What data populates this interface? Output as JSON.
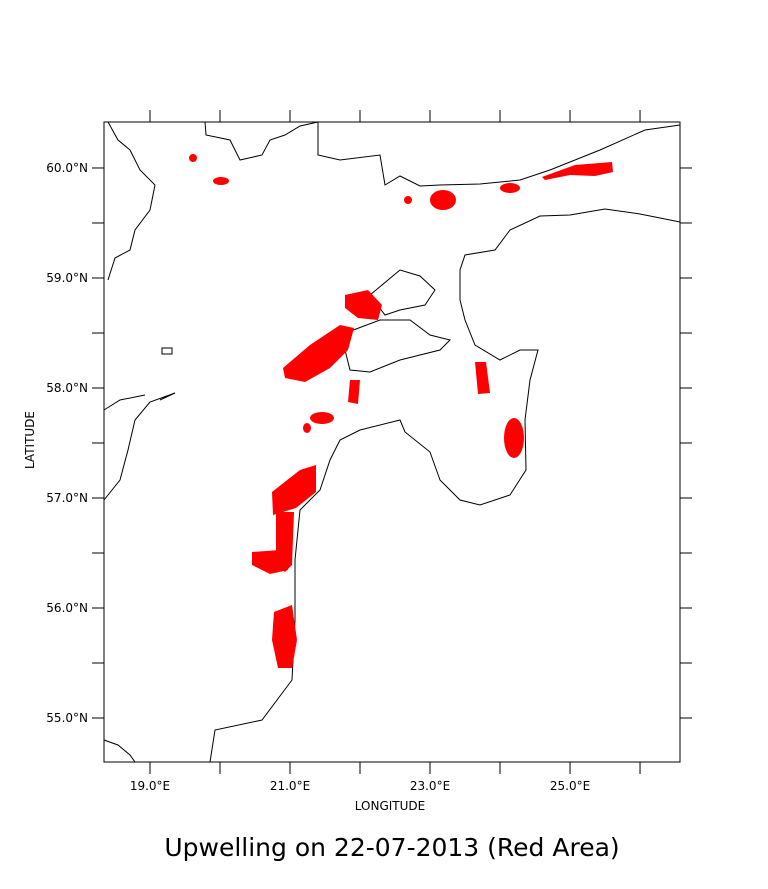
{
  "chart_data": {
    "type": "map",
    "title": "Upwelling on 22-07-2013 (Red Area)",
    "x_label": "LONGITUDE",
    "y_label": "LATITUDE",
    "xlim": [
      18.343,
      26.571
    ],
    "ylim": [
      54.6,
      60.418
    ],
    "xticks": [
      {
        "value": 19,
        "label": "19.0°E"
      },
      {
        "value": 21,
        "label": "21.0°E"
      },
      {
        "value": 23,
        "label": "23.0°E"
      },
      {
        "value": 25,
        "label": "25.0°E"
      }
    ],
    "xminorticks": [
      20,
      22,
      24,
      26
    ],
    "yticks": [
      {
        "value": 55,
        "label": "55.0°N"
      },
      {
        "value": 56,
        "label": "56.0°N"
      },
      {
        "value": 57,
        "label": "57.0°N"
      },
      {
        "value": 58,
        "label": "58.0°N"
      },
      {
        "value": 59,
        "label": "59.0°N"
      },
      {
        "value": 60,
        "label": "60.0°N"
      }
    ],
    "yminorticks": [
      55.5,
      56.5,
      57.5,
      58.5,
      59.5
    ],
    "area_color": "#ff0000"
  }
}
